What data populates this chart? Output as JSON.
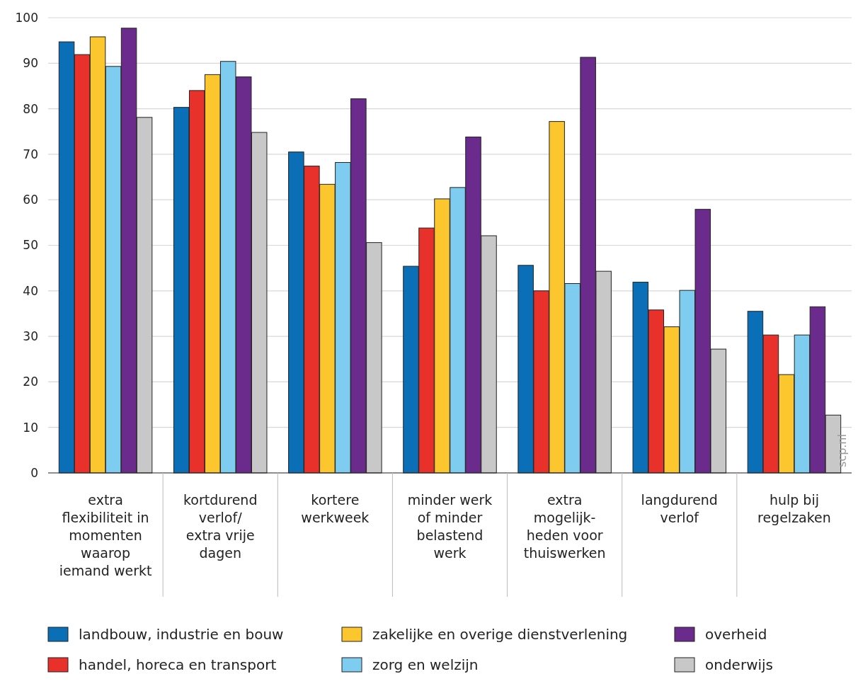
{
  "chart_data": {
    "type": "bar",
    "categories": [
      "extra\nflexibiliteit in\nmomenten\nwaarop\niemand werkt",
      "kortdurend\nverlof/\nextra vrije\ndagen",
      "kortere\nwerkweek",
      "minder werk\nof minder\nbelastend\nwerk",
      "extra\nmogelijk-\nheden voor\nthuiswerken",
      "langdurend\nverlof",
      "hulp bij\nregelzaken"
    ],
    "series": [
      {
        "name": "landbouw, industrie en bouw",
        "color": "#0a6fb7",
        "values": [
          94.7,
          80.3,
          70.5,
          45.4,
          45.6,
          41.9,
          35.5
        ]
      },
      {
        "name": "handel, horeca en transport",
        "color": "#e8312a",
        "values": [
          91.9,
          84.0,
          67.4,
          53.8,
          40.0,
          35.8,
          30.3
        ]
      },
      {
        "name": "zakelijke en overige dienstverlening",
        "color": "#fcc62e",
        "values": [
          95.8,
          87.5,
          63.4,
          60.2,
          77.2,
          32.1,
          21.6
        ]
      },
      {
        "name": "zorg en welzijn",
        "color": "#7ecdf0",
        "values": [
          89.3,
          90.4,
          68.2,
          62.7,
          41.6,
          40.1,
          30.3
        ]
      },
      {
        "name": "overheid",
        "color": "#6a2b8c",
        "values": [
          97.7,
          87.0,
          82.2,
          73.8,
          91.3,
          57.9,
          36.5
        ]
      },
      {
        "name": "onderwijs",
        "color": "#c8c8c8",
        "values": [
          78.1,
          74.8,
          50.6,
          52.1,
          44.3,
          27.2,
          12.7
        ]
      }
    ],
    "ylim": [
      0,
      100
    ],
    "yticks": [
      0,
      10,
      20,
      30,
      40,
      50,
      60,
      70,
      80,
      90,
      100
    ],
    "grid": "y",
    "legend": "bottom",
    "annotations": [
      "scp.nl"
    ]
  }
}
